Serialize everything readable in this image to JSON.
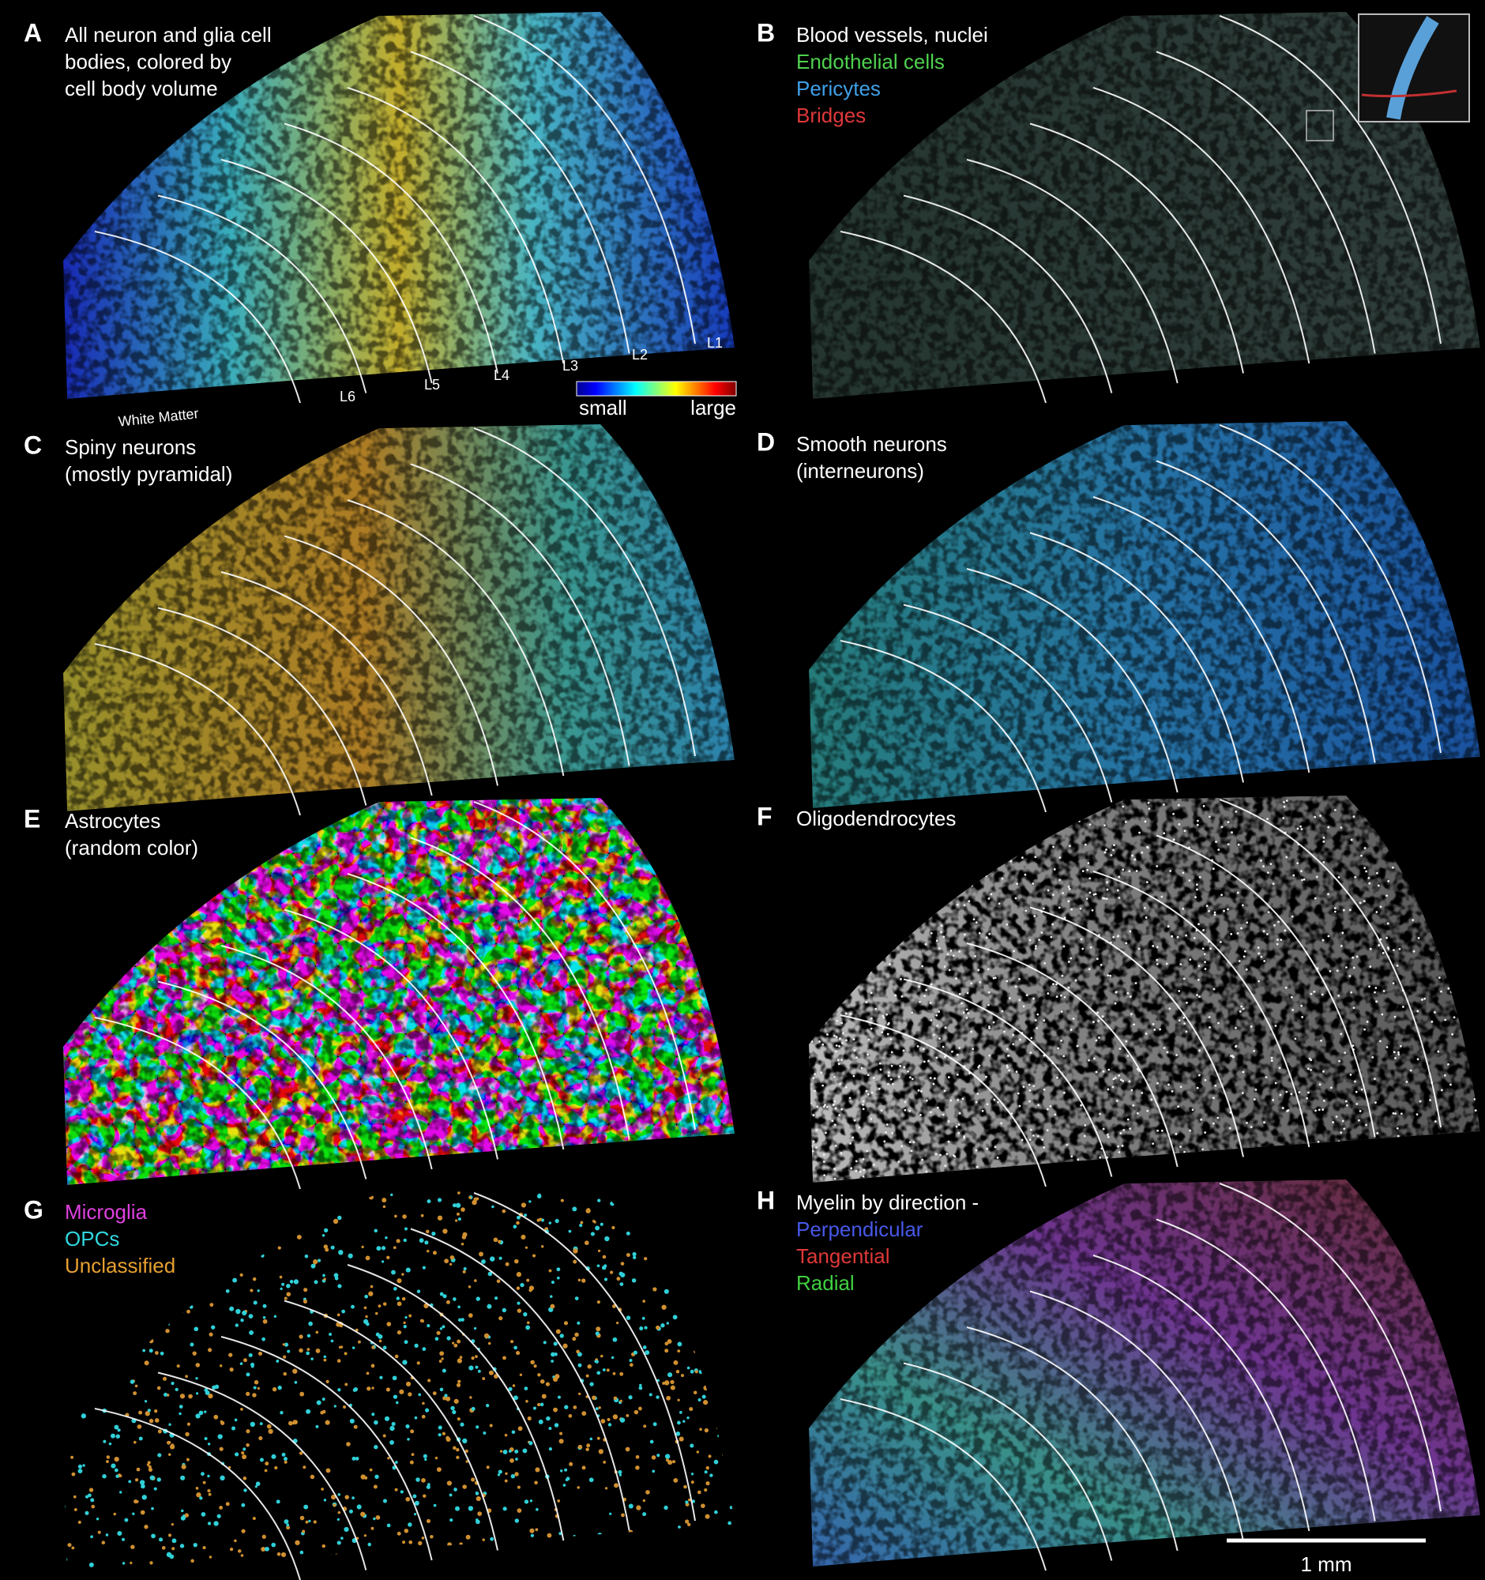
{
  "panels": [
    {
      "letter": "A",
      "lines": [
        {
          "text": "All neuron and glia cell",
          "color": "#ffffff"
        },
        {
          "text": "bodies, colored by",
          "color": "#ffffff"
        },
        {
          "text": "cell body volume",
          "color": "#ffffff"
        }
      ],
      "layer_labels": [
        "L1",
        "L2",
        "L3",
        "L4",
        "L5",
        "L6",
        "White Matter"
      ],
      "colorbar": {
        "min_label": "small",
        "max_label": "large"
      }
    },
    {
      "letter": "B",
      "lines": [
        {
          "text": "Blood vessels, nuclei",
          "color": "#ffffff"
        },
        {
          "text": "Endothelial cells",
          "color": "#4fd14f"
        },
        {
          "text": "Pericytes",
          "color": "#3fa0e8"
        },
        {
          "text": "Bridges",
          "color": "#e0383a"
        }
      ]
    },
    {
      "letter": "C",
      "lines": [
        {
          "text": "Spiny neurons",
          "color": "#ffffff"
        },
        {
          "text": "(mostly pyramidal)",
          "color": "#ffffff"
        }
      ]
    },
    {
      "letter": "D",
      "lines": [
        {
          "text": "Smooth neurons",
          "color": "#ffffff"
        },
        {
          "text": "(interneurons)",
          "color": "#ffffff"
        }
      ]
    },
    {
      "letter": "E",
      "lines": [
        {
          "text": "Astrocytes",
          "color": "#ffffff"
        },
        {
          "text": "(random color)",
          "color": "#ffffff"
        }
      ]
    },
    {
      "letter": "F",
      "lines": [
        {
          "text": "Oligodendrocytes",
          "color": "#ffffff"
        }
      ]
    },
    {
      "letter": "G",
      "lines": [
        {
          "text": "Microglia",
          "color": "#e040e0"
        },
        {
          "text": "OPCs",
          "color": "#30d8e0"
        },
        {
          "text": "Unclassified",
          "color": "#e8a030"
        }
      ]
    },
    {
      "letter": "H",
      "lines": [
        {
          "text": "Myelin by direction -",
          "color": "#ffffff"
        },
        {
          "text": "Perpendicular",
          "color": "#4858e8"
        },
        {
          "text": "Tangential",
          "color": "#e03838"
        },
        {
          "text": "Radial",
          "color": "#40d040"
        }
      ]
    }
  ],
  "scale_bar": "1 mm"
}
